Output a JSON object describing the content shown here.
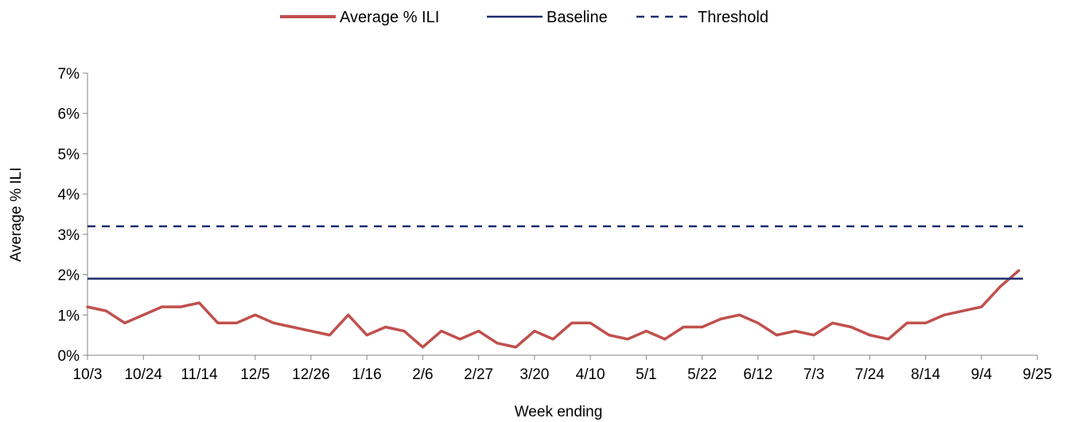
{
  "chart_data": {
    "type": "line",
    "title": "",
    "xlabel": "Week ending",
    "ylabel": "Average % ILI",
    "ylim": [
      0,
      7
    ],
    "y_ticks": [
      "0%",
      "1%",
      "2%",
      "3%",
      "4%",
      "5%",
      "6%",
      "7%"
    ],
    "x_tick_labels": [
      "10/3",
      "10/24",
      "11/14",
      "12/5",
      "12/26",
      "1/16",
      "2/6",
      "2/27",
      "3/20",
      "4/10",
      "5/1",
      "5/22",
      "6/12",
      "7/3",
      "7/24",
      "8/14",
      "9/4",
      "9/25"
    ],
    "x_tick_every_weeks": 3,
    "legend_position": "top-center",
    "grid": false,
    "x": [
      "10/3",
      "10/10",
      "10/17",
      "10/24",
      "10/31",
      "11/7",
      "11/14",
      "11/21",
      "11/28",
      "12/5",
      "12/12",
      "12/19",
      "12/26",
      "1/2",
      "1/9",
      "1/16",
      "1/23",
      "1/30",
      "2/6",
      "2/13",
      "2/20",
      "2/27",
      "3/6",
      "3/13",
      "3/20",
      "3/27",
      "4/3",
      "4/10",
      "4/17",
      "4/24",
      "5/1",
      "5/8",
      "5/15",
      "5/22",
      "5/29",
      "6/5",
      "6/12",
      "6/19",
      "6/26",
      "7/3",
      "7/10",
      "7/17",
      "7/24",
      "7/31",
      "8/7",
      "8/14",
      "8/21",
      "8/28",
      "9/4",
      "9/11",
      "9/18"
    ],
    "series": [
      {
        "name": "Average % ILI",
        "color": "#c0504d",
        "style": "solid",
        "values": [
          1.2,
          1.1,
          0.8,
          1.0,
          1.2,
          1.2,
          1.3,
          0.8,
          0.8,
          1.0,
          0.8,
          0.7,
          0.6,
          0.5,
          1.0,
          0.5,
          0.7,
          0.6,
          0.2,
          0.6,
          0.4,
          0.6,
          0.3,
          0.2,
          0.6,
          0.4,
          0.8,
          0.8,
          0.5,
          0.4,
          0.6,
          0.4,
          0.7,
          0.7,
          0.9,
          1.0,
          0.8,
          0.5,
          0.6,
          0.5,
          0.8,
          0.7,
          0.5,
          0.4,
          0.8,
          0.8,
          1.0,
          1.1,
          1.2,
          1.7,
          2.1
        ]
      },
      {
        "name": "Baseline",
        "color": "#1f2f6e",
        "style": "solid",
        "constant": 1.9
      },
      {
        "name": "Threshold",
        "color": "#1f2f6e",
        "style": "dashed",
        "constant": 3.2
      }
    ]
  }
}
